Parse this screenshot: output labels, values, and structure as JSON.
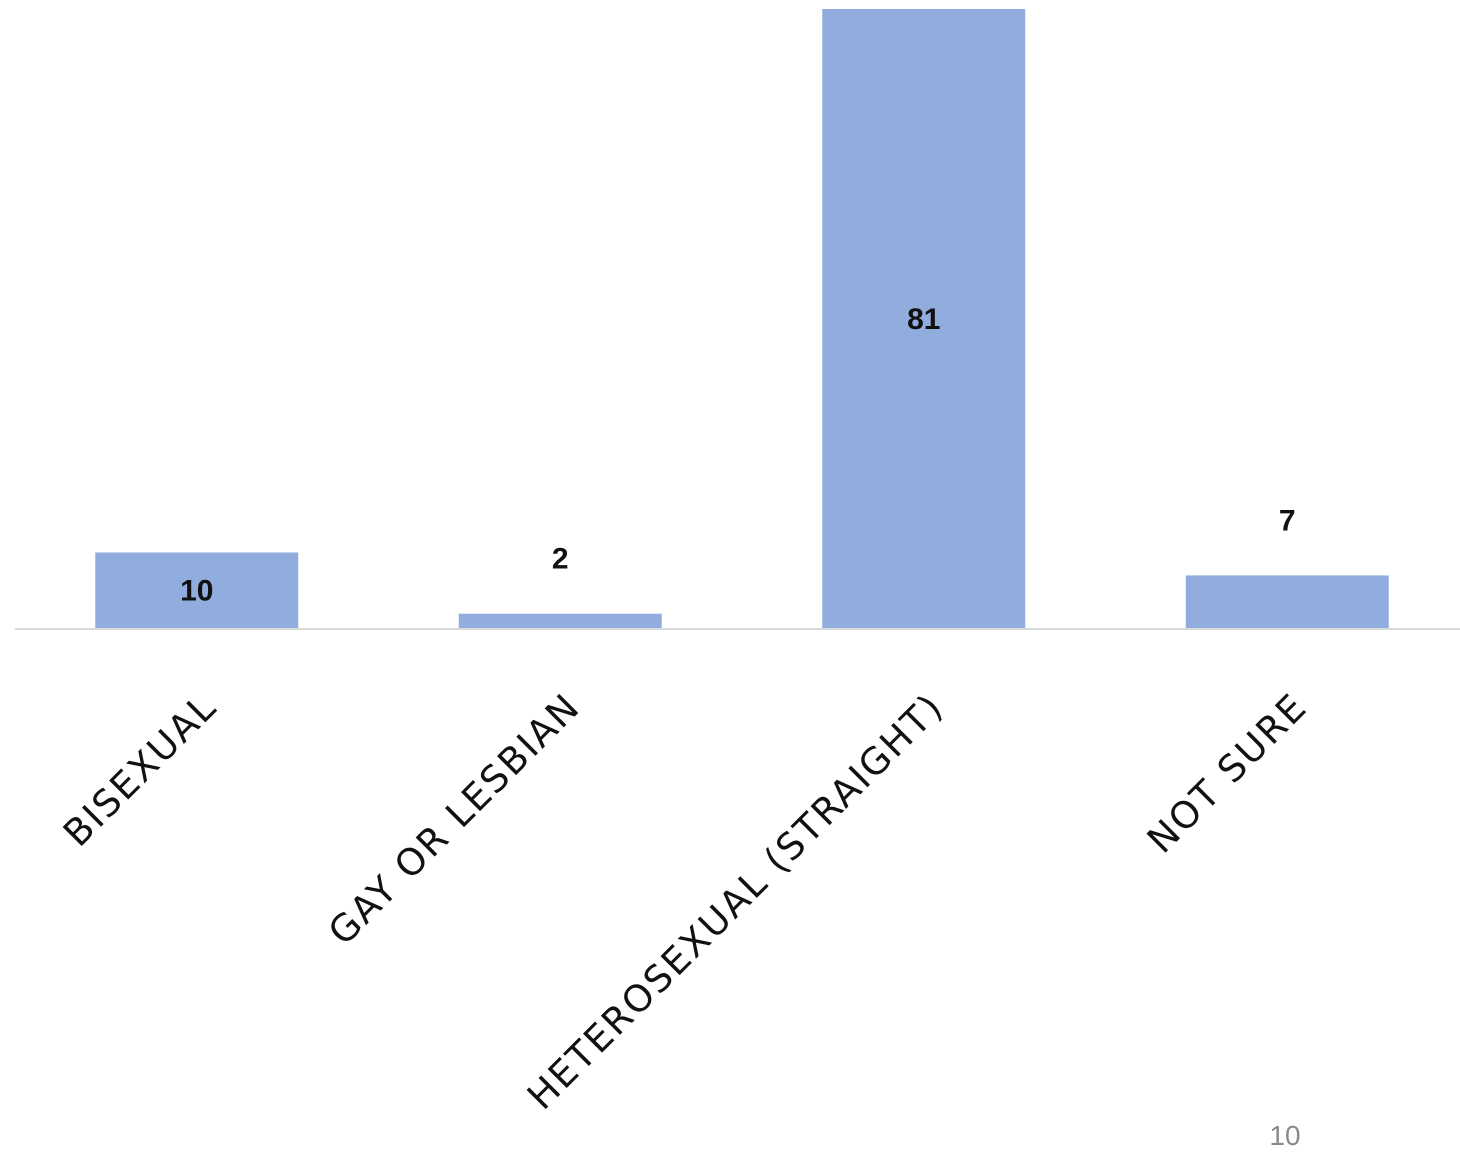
{
  "chart_data": {
    "type": "bar",
    "categories": [
      "BISEXUAL",
      "GAY OR LESBIAN",
      "HETEROSEXUAL (STRAIGHT)",
      "NOT SURE"
    ],
    "values": [
      10,
      2,
      81,
      7
    ],
    "value_labels": [
      "10",
      "2",
      "81",
      "7"
    ],
    "title": "",
    "xlabel": "",
    "ylabel": "",
    "ylim": [
      0,
      81
    ],
    "grid": false,
    "legend": "none",
    "bar_color": "#91ADDD",
    "axis_color": "#D9D9D9"
  },
  "page_number": "10"
}
